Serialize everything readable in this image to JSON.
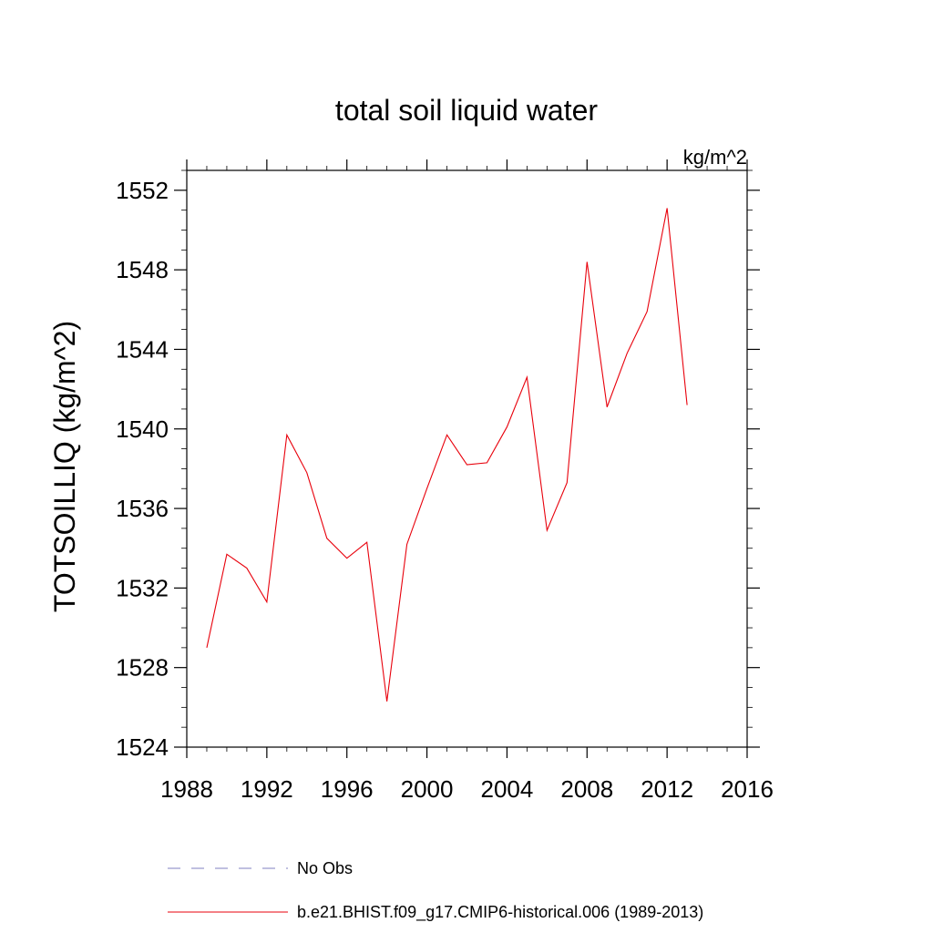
{
  "chart_data": {
    "type": "line",
    "title": "total soil liquid water",
    "units_label": "kg/m^2",
    "ylabel": "TOTSOILLIQ  (kg/m^2)",
    "xlabel": "",
    "xlim": [
      1988,
      2016
    ],
    "ylim": [
      1524,
      1553
    ],
    "x_ticks": [
      1988,
      1992,
      1996,
      2000,
      2004,
      2008,
      2012,
      2016
    ],
    "y_ticks": [
      1524,
      1528,
      1532,
      1536,
      1540,
      1544,
      1548,
      1552
    ],
    "x_tick_labels": [
      "1988",
      "1992",
      "1996",
      "2000",
      "2004",
      "2008",
      "2012",
      "2016"
    ],
    "y_tick_labels": [
      "1524",
      "1528",
      "1532",
      "1536",
      "1540",
      "1544",
      "1548",
      "1552"
    ],
    "grid": false,
    "legend_position": "bottom",
    "series": [
      {
        "name": "No Obs",
        "color": "#8080c0",
        "dashed": true,
        "x": [],
        "values": []
      },
      {
        "name": "b.e21.BHIST.f09_g17.CMIP6-historical.006 (1989-2013)",
        "color": "#e8000b",
        "dashed": false,
        "x": [
          1989,
          1990,
          1991,
          1992,
          1993,
          1994,
          1995,
          1996,
          1997,
          1998,
          1999,
          2000,
          2001,
          2002,
          2003,
          2004,
          2005,
          2006,
          2007,
          2008,
          2009,
          2010,
          2011,
          2012,
          2013
        ],
        "values": [
          1529.0,
          1533.7,
          1533.0,
          1531.3,
          1539.7,
          1537.8,
          1534.5,
          1533.5,
          1534.3,
          1526.3,
          1534.2,
          1537.0,
          1539.7,
          1538.2,
          1538.3,
          1540.1,
          1542.6,
          1534.9,
          1537.3,
          1548.4,
          1541.1,
          1543.8,
          1545.9,
          1551.1,
          1541.2
        ]
      }
    ]
  }
}
